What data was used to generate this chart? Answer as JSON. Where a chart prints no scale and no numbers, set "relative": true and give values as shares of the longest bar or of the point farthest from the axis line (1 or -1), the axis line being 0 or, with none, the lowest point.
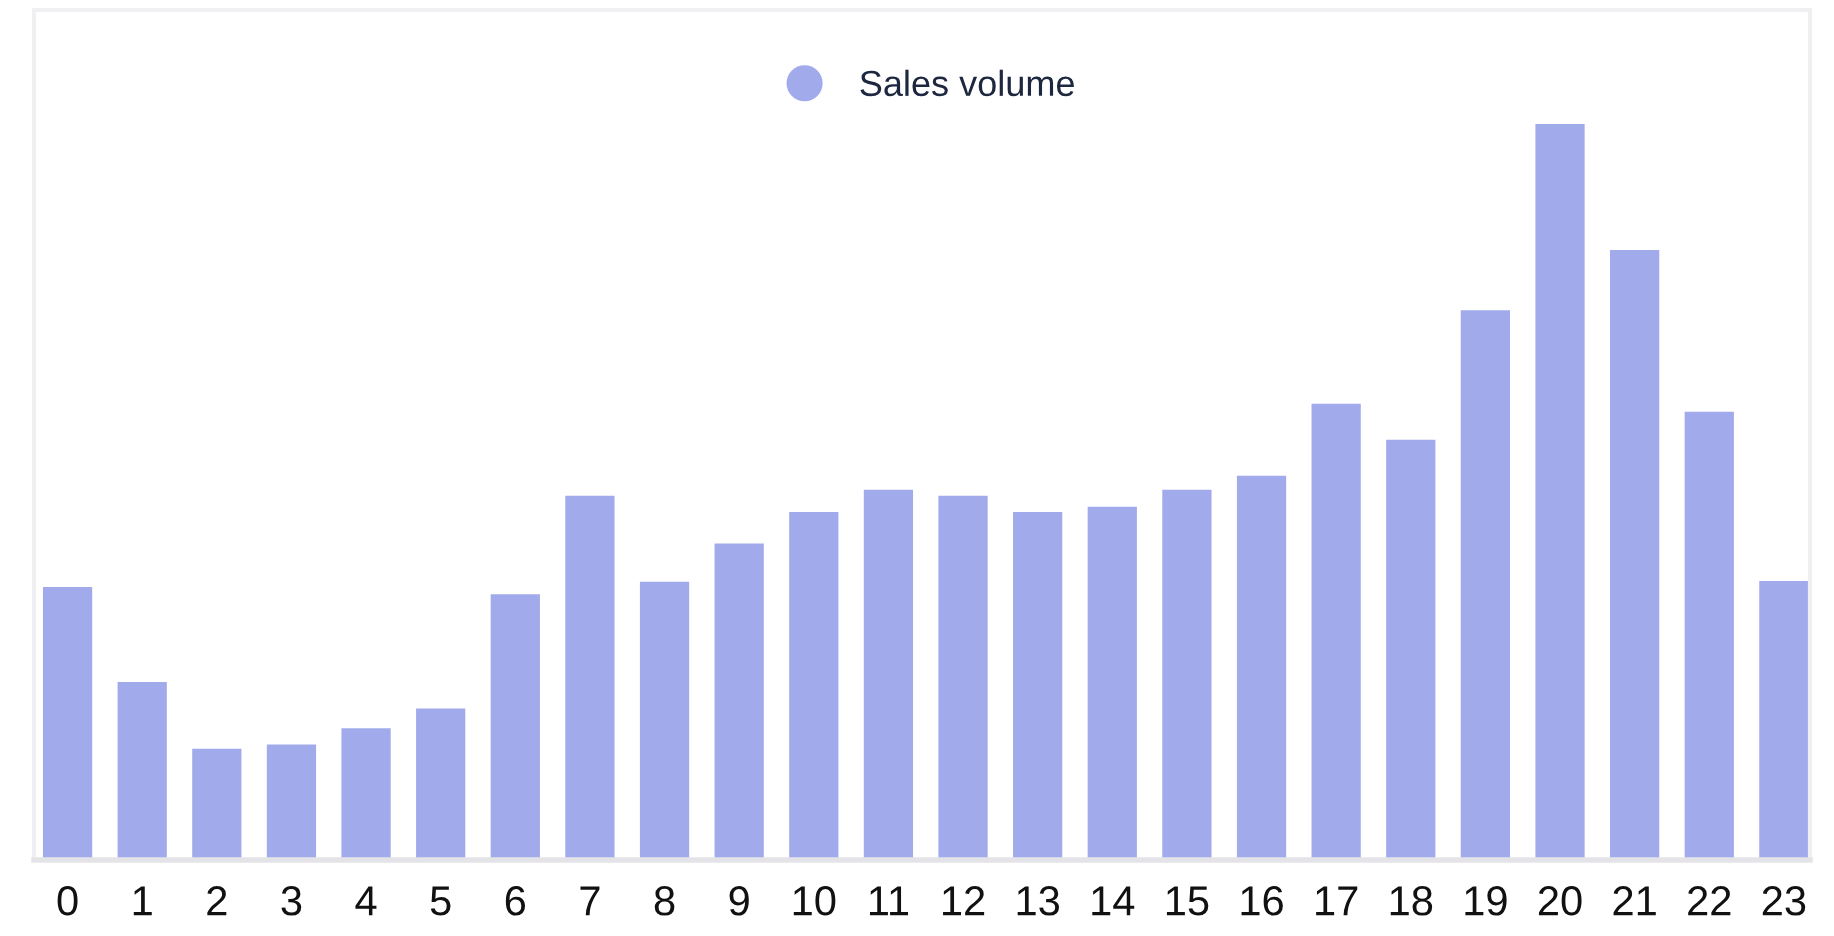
{
  "chart_data": {
    "type": "bar",
    "relative": true,
    "categories": [
      "0",
      "1",
      "2",
      "3",
      "4",
      "5",
      "6",
      "7",
      "8",
      "9",
      "10",
      "11",
      "12",
      "13",
      "14",
      "15",
      "16",
      "17",
      "18",
      "19",
      "20",
      "21",
      "22",
      "23"
    ],
    "series": [
      {
        "name": "Sales volume",
        "color": "#a1abeb",
        "values": [
          0.371,
          0.242,
          0.151,
          0.157,
          0.179,
          0.206,
          0.361,
          0.495,
          0.378,
          0.43,
          0.473,
          0.503,
          0.495,
          0.473,
          0.48,
          0.503,
          0.522,
          0.62,
          0.571,
          0.747,
          1.0,
          0.829,
          0.609,
          0.379
        ]
      }
    ],
    "legend": "top"
  }
}
